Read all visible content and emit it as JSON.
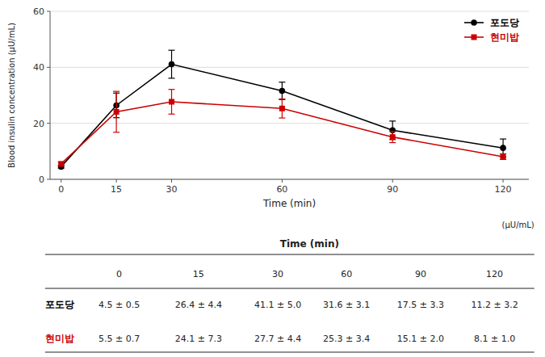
{
  "chart_data": {
    "type": "line",
    "xlabel": "Time (min)",
    "ylabel": "Blood insulin concentration (μU/mL)",
    "x": [
      0,
      15,
      30,
      60,
      90,
      120
    ],
    "xlim": [
      -3,
      127
    ],
    "xticks": [
      0,
      15,
      30,
      60,
      90,
      120
    ],
    "ylim": [
      0,
      60
    ],
    "yticks": [
      0,
      20,
      40,
      60
    ],
    "grid": "y",
    "legend": "upper right",
    "series": [
      {
        "name": "포도당",
        "color": "#000000",
        "marker": "circle",
        "values": [
          4.5,
          26.4,
          41.1,
          31.6,
          17.5,
          11.2
        ],
        "errors": [
          0.5,
          4.4,
          5.0,
          3.1,
          3.3,
          3.2
        ]
      },
      {
        "name": "현미밥",
        "color": "#cc0000",
        "marker": "square",
        "values": [
          5.5,
          24.1,
          27.7,
          25.3,
          15.1,
          8.1
        ],
        "errors": [
          0.7,
          7.3,
          4.4,
          3.4,
          2.0,
          1.0
        ]
      }
    ],
    "table": {
      "unit": "(μU/mL)",
      "header": "Time (min)",
      "columns": [
        "0",
        "15",
        "30",
        "60",
        "90",
        "120"
      ],
      "rows": [
        {
          "name": "포도당",
          "color": "#000000",
          "values": [
            "4.5 ± 0.5",
            "26.4 ± 4.4",
            "41.1 ± 5.0",
            "31.6 ± 3.1",
            "17.5 ± 3.3",
            "11.2 ± 3.2"
          ]
        },
        {
          "name": "현미밥",
          "color": "#cc0000",
          "values": [
            "5.5 ± 0.7",
            "24.1 ± 7.3",
            "27.7 ± 4.4",
            "25.3 ± 3.4",
            "15.1 ± 2.0",
            "8.1 ± 1.0"
          ]
        }
      ]
    }
  }
}
